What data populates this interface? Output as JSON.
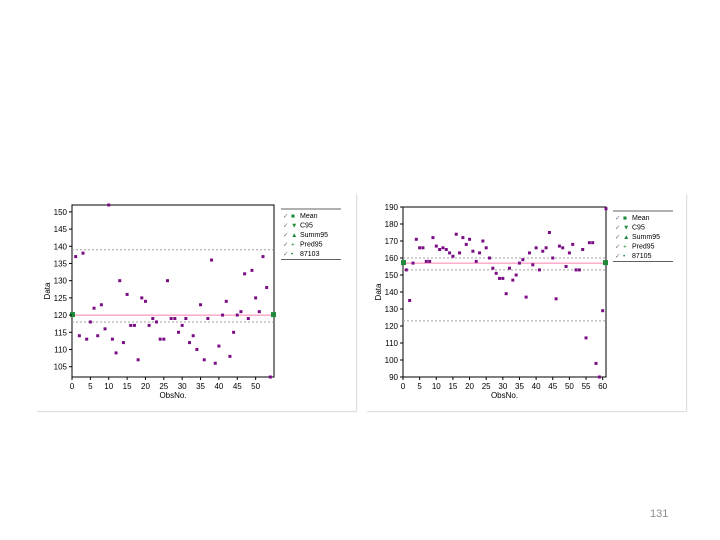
{
  "page": {
    "number": "131"
  },
  "colors": {
    "point": "#7a0d85",
    "line": "#ff7fb0",
    "band": "#a0a0a0",
    "marker": "#1f8a3a",
    "axis": "#000000"
  },
  "chart_data": [
    {
      "type": "scatter",
      "title": "",
      "xlabel": "ObsNo.",
      "ylabel": "Data",
      "xlim": [
        0,
        55
      ],
      "ylim": [
        102,
        152
      ],
      "xticks": [
        0,
        5,
        10,
        15,
        20,
        25,
        30,
        35,
        40,
        45,
        50
      ],
      "yticks": [
        105,
        110,
        115,
        120,
        125,
        130,
        135,
        140,
        145,
        150
      ],
      "reference_lines": {
        "mean": 120,
        "upper": 139,
        "lower": 118
      },
      "legend": {
        "placement": "right",
        "entries": [
          {
            "label": "Mean",
            "check": "✓"
          },
          {
            "label": "C95",
            "check": "✓"
          },
          {
            "label": "Summ95",
            "check": "✓"
          },
          {
            "label": "Pred95",
            "check": "✓"
          },
          {
            "label": "87103",
            "check": "✓"
          }
        ]
      },
      "x": [
        1,
        2,
        3,
        4,
        5,
        6,
        7,
        8,
        9,
        10,
        11,
        12,
        13,
        14,
        15,
        16,
        17,
        18,
        19,
        20,
        21,
        22,
        23,
        24,
        25,
        26,
        27,
        28,
        29,
        30,
        31,
        32,
        33,
        34,
        35,
        36,
        37,
        38,
        39,
        40,
        41,
        42,
        43,
        44,
        45,
        46,
        47,
        48,
        49,
        50,
        51,
        52,
        53,
        54
      ],
      "y": [
        137,
        114,
        138,
        113,
        118,
        122,
        114,
        123,
        116,
        152,
        113,
        109,
        130,
        112,
        126,
        117,
        117,
        107,
        125,
        124,
        117,
        119,
        118,
        113,
        113,
        130,
        119,
        119,
        115,
        117,
        119,
        112,
        114,
        110,
        123,
        107,
        119,
        136,
        106,
        111,
        120,
        124,
        108,
        115,
        120,
        121,
        132,
        119,
        133,
        125,
        121,
        137,
        128,
        102
      ]
    },
    {
      "type": "scatter",
      "title": "",
      "xlabel": "ObsNo.",
      "ylabel": "Data",
      "xlim": [
        0,
        61
      ],
      "ylim": [
        90,
        190
      ],
      "xticks": [
        0,
        5,
        10,
        15,
        20,
        25,
        30,
        35,
        40,
        45,
        50,
        55,
        60
      ],
      "yticks": [
        90,
        100,
        110,
        120,
        130,
        140,
        150,
        160,
        170,
        180,
        190
      ],
      "reference_lines": {
        "mean": 157,
        "upper": 160,
        "lower": 153,
        "lower_band": 123
      },
      "legend": {
        "placement": "right",
        "entries": [
          {
            "label": "Mean",
            "check": "✓"
          },
          {
            "label": "C95",
            "check": "✓"
          },
          {
            "label": "Summ95",
            "check": "✓"
          },
          {
            "label": "Pred95",
            "check": "✓"
          },
          {
            "label": "87105",
            "check": "✓"
          }
        ]
      },
      "x": [
        1,
        2,
        3,
        4,
        5,
        6,
        7,
        8,
        9,
        10,
        11,
        12,
        13,
        14,
        15,
        16,
        17,
        18,
        19,
        20,
        21,
        22,
        23,
        24,
        25,
        26,
        27,
        28,
        29,
        30,
        31,
        32,
        33,
        34,
        35,
        36,
        37,
        38,
        39,
        40,
        41,
        42,
        43,
        44,
        45,
        46,
        47,
        48,
        49,
        50,
        51,
        52,
        53,
        54,
        55,
        56,
        57,
        58,
        59,
        60,
        61
      ],
      "y": [
        153,
        135,
        157,
        171,
        166,
        166,
        158,
        158,
        172,
        167,
        165,
        166,
        165,
        163,
        161,
        174,
        163,
        172,
        168,
        171,
        164,
        158,
        163,
        170,
        166,
        160,
        154,
        151,
        148,
        148,
        139,
        154,
        147,
        150,
        157,
        159,
        137,
        163,
        156,
        166,
        153,
        164,
        166,
        175,
        160,
        136,
        167,
        166,
        155,
        163,
        168,
        153,
        153,
        165,
        113,
        169,
        169,
        98,
        90,
        129,
        189
      ]
    }
  ]
}
